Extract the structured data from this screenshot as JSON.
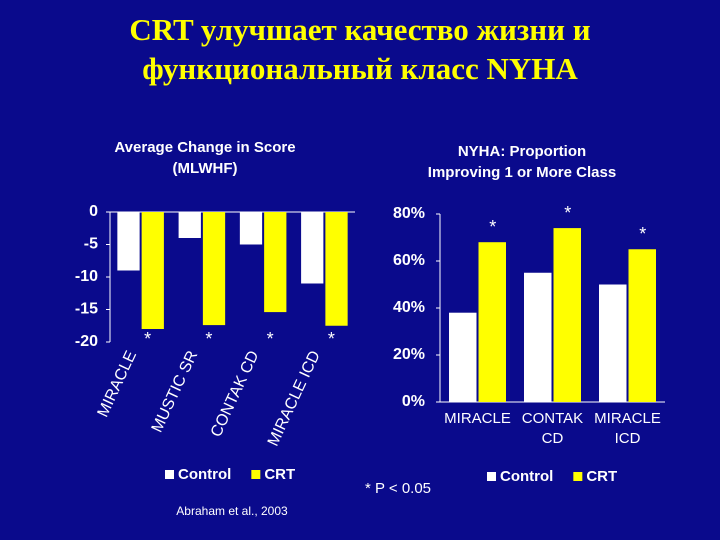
{
  "title": [
    "CRT улучшает качество жизни и",
    "функциональный класс NYHA"
  ],
  "footnote": "* P < 0.05",
  "source": "Abraham et al., 2003",
  "chart_data": [
    {
      "type": "bar",
      "title": [
        "Average Change in Score",
        "(MLWHF)"
      ],
      "categories": [
        "MIRACLE",
        "MUSTIC SR",
        "CONTAK CD",
        "MIRACLE ICD"
      ],
      "series": [
        {
          "name": "Control",
          "color": "#ffffff",
          "values": [
            -9,
            -4,
            -5,
            -11
          ]
        },
        {
          "name": "CRT",
          "color": "#ffff00",
          "values": [
            -18,
            -17.4,
            -15.4,
            -17.5
          ]
        }
      ],
      "annotations": [
        "*",
        "*",
        "*",
        "*"
      ],
      "ylim": [
        -20,
        0
      ],
      "yticks": [
        0,
        -5,
        -10,
        -15,
        -20
      ]
    },
    {
      "type": "bar",
      "title": [
        "NYHA: Proportion",
        "Improving 1 or More Class"
      ],
      "categories": [
        "MIRACLE",
        "CONTAK CD",
        "MIRACLE ICD"
      ],
      "series": [
        {
          "name": "Control",
          "color": "#ffffff",
          "values": [
            38,
            55,
            50
          ]
        },
        {
          "name": "CRT",
          "color": "#ffff00",
          "values": [
            68,
            74,
            65
          ]
        }
      ],
      "annotations": [
        "*",
        "*",
        "*"
      ],
      "ylim": [
        0,
        80
      ],
      "yticks": [
        {
          "value": 0,
          "label": "0%"
        },
        {
          "value": 20,
          "label": "20%"
        },
        {
          "value": 40,
          "label": "40%"
        },
        {
          "value": 60,
          "label": "60%"
        },
        {
          "value": 80,
          "label": "80%"
        }
      ]
    }
  ]
}
